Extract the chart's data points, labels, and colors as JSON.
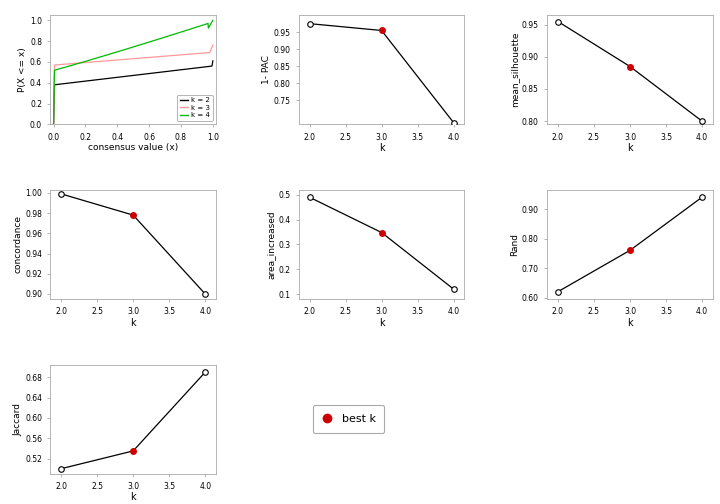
{
  "ecdf": {
    "colors": {
      "k2": "#000000",
      "k3": "#ff9999",
      "k4": "#00bb00"
    },
    "xlabel": "consensus value (x)",
    "ylabel": "P(X <= x)",
    "legend": [
      "k = 2",
      "k = 3",
      "k = 4"
    ]
  },
  "pac": {
    "k": [
      2,
      3,
      4
    ],
    "y": [
      0.975,
      0.955,
      0.685
    ],
    "best_k": 3,
    "ylabel": "1- PAC",
    "xlabel": "k",
    "ylim": [
      0.68,
      1.0
    ],
    "yticks": [
      0.75,
      0.8,
      0.85,
      0.9,
      0.95
    ],
    "yticklabels": [
      "0.75",
      "0.80",
      "0.85",
      "0.90",
      "0.95"
    ]
  },
  "silhouette": {
    "k": [
      2,
      3,
      4
    ],
    "y": [
      0.955,
      0.885,
      0.8
    ],
    "best_k": 3,
    "ylabel": "mean_silhouette",
    "xlabel": "k",
    "ylim": [
      0.795,
      0.965
    ],
    "yticks": [
      0.8,
      0.85,
      0.9,
      0.95
    ],
    "yticklabels": [
      "0.80",
      "0.85",
      "0.90",
      "0.95"
    ]
  },
  "concordance": {
    "k": [
      2,
      3,
      4
    ],
    "y": [
      0.999,
      0.978,
      0.9
    ],
    "best_k": 3,
    "ylabel": "concordance",
    "xlabel": "k",
    "ylim": [
      0.895,
      1.003
    ],
    "yticks": [
      0.9,
      0.92,
      0.94,
      0.96,
      0.98,
      1.0
    ],
    "yticklabels": [
      "0.90",
      "0.92",
      "0.94",
      "0.96",
      "0.98",
      "1.00"
    ]
  },
  "area_increased": {
    "k": [
      2,
      3,
      4
    ],
    "y": [
      0.49,
      0.348,
      0.12
    ],
    "best_k": 3,
    "ylabel": "area_increased",
    "xlabel": "k",
    "ylim": [
      0.08,
      0.52
    ],
    "yticks": [
      0.1,
      0.2,
      0.3,
      0.4,
      0.5
    ],
    "yticklabels": [
      "0.1",
      "0.2",
      "0.3",
      "0.4",
      "0.5"
    ]
  },
  "rand": {
    "k": [
      2,
      3,
      4
    ],
    "y": [
      0.62,
      0.76,
      0.94
    ],
    "best_k": 3,
    "ylabel": "Rand",
    "xlabel": "k",
    "ylim": [
      0.595,
      0.965
    ],
    "yticks": [
      0.6,
      0.7,
      0.8,
      0.9
    ],
    "yticklabels": [
      "0.60",
      "0.70",
      "0.80",
      "0.90"
    ]
  },
  "jaccard": {
    "k": [
      2,
      3,
      4
    ],
    "y": [
      0.5,
      0.535,
      0.69
    ],
    "best_k": 3,
    "ylabel": "Jaccard",
    "xlabel": "k",
    "ylim": [
      0.49,
      0.705
    ],
    "yticks": [
      0.52,
      0.56,
      0.6,
      0.64,
      0.68
    ],
    "yticklabels": [
      "0.52",
      "0.56",
      "0.60",
      "0.64",
      "0.68"
    ]
  },
  "bg_color": "#ffffff",
  "ax_bg_color": "#ffffff",
  "line_color": "#000000",
  "best_k_color": "#cc0000",
  "spine_color": "#aaaaaa",
  "tick_color": "#000000"
}
